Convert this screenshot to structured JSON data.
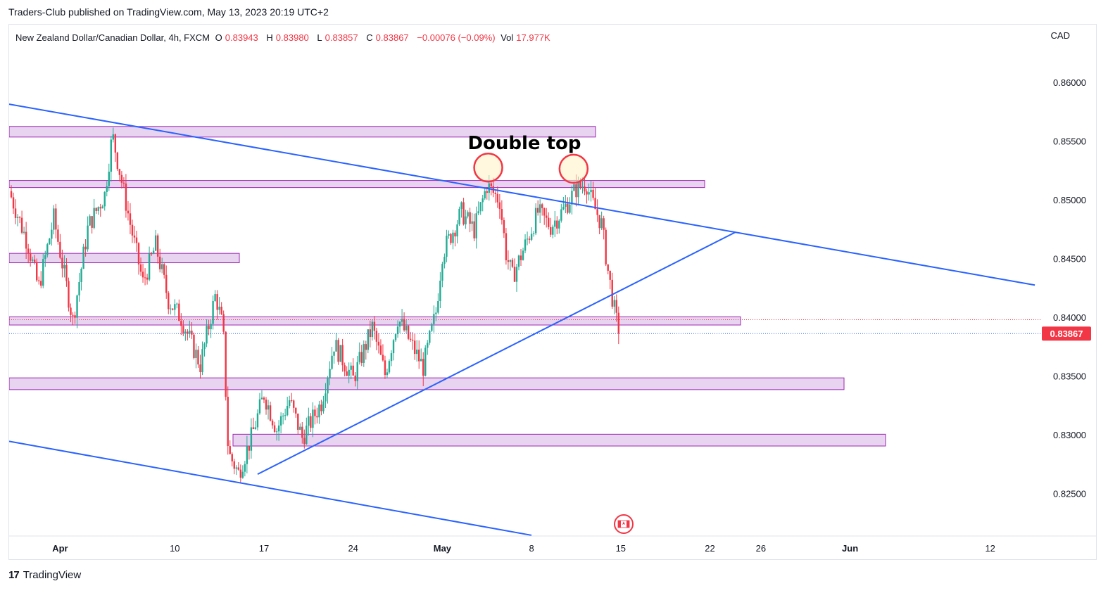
{
  "header": {
    "publish_info": "Traders-Club published on TradingView.com, May 13, 2023 20:19 UTC+2"
  },
  "legend": {
    "symbol": "New Zealand Dollar/Canadian Dollar, 4h, FXCM",
    "open_label": "O",
    "open_value": "0.83943",
    "high_label": "H",
    "high_value": "0.83980",
    "low_label": "L",
    "low_value": "0.83857",
    "close_label": "C",
    "close_value": "0.83867",
    "change": "−0.00076 (−0.09%)",
    "vol_label": "Vol",
    "vol_value": "17.977K"
  },
  "currency": "CAD",
  "footer": {
    "brand": "TradingView",
    "brand_mark": "17"
  },
  "colors": {
    "bull": "#22ab94",
    "bear": "#f23645",
    "trendline": "#2962ff",
    "zone_fill": "#e8d3f0",
    "zone_stroke": "#9c27b0",
    "price_tag": "#f23645",
    "circle": "#f23645",
    "circle_fill": "#fff3c4"
  },
  "chart_data": {
    "type": "candlestick",
    "symbol": "NZDCAD",
    "timeframe": "4h",
    "price_axis": {
      "range": [
        0.8213,
        0.8621
      ],
      "ticks": [
        "0.86000",
        "0.85500",
        "0.85000",
        "0.84500",
        "0.84000",
        "0.83500",
        "0.83000",
        "0.82500"
      ],
      "tick_values": [
        0.86,
        0.855,
        0.85,
        0.845,
        0.84,
        0.835,
        0.83,
        0.825
      ]
    },
    "time_axis": {
      "labels": [
        "Apr",
        "10",
        "17",
        "24",
        "May",
        "8",
        "15",
        "22",
        "26",
        "Jun",
        "12"
      ],
      "bold": [
        "Apr",
        "May",
        "Jun"
      ],
      "label_day_index": [
        4,
        13,
        20,
        27,
        34,
        41,
        48,
        55,
        59,
        66,
        77
      ],
      "start": "2023-03-29",
      "end": "2023-06-20"
    },
    "last_price": {
      "value": 0.83867,
      "label": "0.83867"
    },
    "prev_close_line": 0.83985,
    "closes_key": [
      [
        0,
        0.8508
      ],
      [
        1.5,
        0.8462
      ],
      [
        2.3,
        0.8425
      ],
      [
        3.5,
        0.8485
      ],
      [
        5,
        0.8398
      ],
      [
        6.2,
        0.8478
      ],
      [
        7.5,
        0.8505
      ],
      [
        8.1,
        0.8556
      ],
      [
        9.5,
        0.848
      ],
      [
        10.5,
        0.843
      ],
      [
        11.5,
        0.8462
      ],
      [
        12.5,
        0.8415
      ],
      [
        13.5,
        0.84
      ],
      [
        15,
        0.836
      ],
      [
        16.2,
        0.842
      ],
      [
        16.8,
        0.839
      ],
      [
        17.2,
        0.8285
      ],
      [
        18,
        0.8268
      ],
      [
        19,
        0.8298
      ],
      [
        20,
        0.8335
      ],
      [
        21,
        0.8305
      ],
      [
        22,
        0.833
      ],
      [
        23,
        0.8298
      ],
      [
        24.5,
        0.8328
      ],
      [
        25.5,
        0.8378
      ],
      [
        27,
        0.8348
      ],
      [
        28.5,
        0.8392
      ],
      [
        29.5,
        0.8352
      ],
      [
        30.5,
        0.84
      ],
      [
        32.5,
        0.8358
      ],
      [
        33.5,
        0.8405
      ],
      [
        34,
        0.8455
      ],
      [
        35.5,
        0.849
      ],
      [
        36.5,
        0.8475
      ],
      [
        37.5,
        0.8513
      ],
      [
        38.5,
        0.85
      ],
      [
        39,
        0.8455
      ],
      [
        39.5,
        0.8435
      ],
      [
        40.5,
        0.8462
      ],
      [
        41.5,
        0.849
      ],
      [
        42.5,
        0.8478
      ],
      [
        43.5,
        0.8492
      ],
      [
        44.5,
        0.851
      ],
      [
        45.3,
        0.8515
      ],
      [
        45.7,
        0.85
      ],
      [
        46.5,
        0.848
      ],
      [
        47,
        0.844
      ],
      [
        47.6,
        0.84
      ],
      [
        47.9,
        0.83867
      ]
    ],
    "horizontal_zones": [
      {
        "top": 0.8563,
        "bottom": 0.8554
      },
      {
        "top": 0.8517,
        "bottom": 0.8511
      },
      {
        "top": 0.8455,
        "bottom": 0.8447
      },
      {
        "top": 0.8401,
        "bottom": 0.8394
      },
      {
        "top": 0.8349,
        "bottom": 0.8339
      },
      {
        "top": 0.8301,
        "bottom": 0.8291
      }
    ],
    "trendlines": [
      {
        "from": [
          0,
          0.8582
        ],
        "to": [
          80.5,
          0.8428
        ]
      },
      {
        "from": [
          0,
          0.8295
        ],
        "to": [
          41,
          0.8215
        ]
      },
      {
        "from": [
          19.5,
          0.8267
        ],
        "to": [
          57,
          0.8473
        ]
      }
    ],
    "annotations": [
      {
        "text": "Double top"
      }
    ],
    "double_top_markers": [
      {
        "day": 37.6,
        "price": 0.8528
      },
      {
        "day": 44.3,
        "price": 0.8527
      }
    ]
  }
}
